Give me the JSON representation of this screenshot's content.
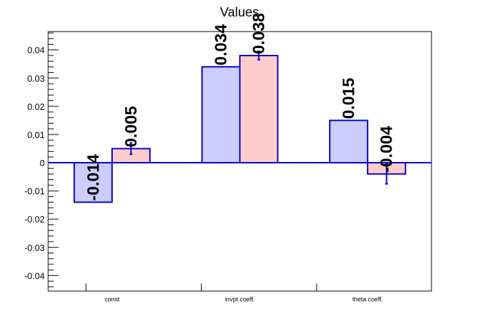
{
  "chart_data": {
    "type": "bar",
    "title": "Values",
    "categories": [
      "const",
      "invpt coeff.",
      "theta coeff."
    ],
    "series": [
      {
        "values": [
          -0.014,
          0.034,
          0.015
        ],
        "errors": [
          0,
          0,
          0
        ],
        "color": "#ccccff"
      },
      {
        "values": [
          0.005,
          0.038,
          -0.004
        ],
        "errors": [
          0.002,
          0.0015,
          0.0035
        ],
        "color": "#ffcccc"
      }
    ],
    "data_labels": [
      [
        "-0.014",
        "0.034",
        "0.015"
      ],
      [
        "0.005",
        "0.038",
        "-0.004"
      ]
    ],
    "yticks": [
      "-0.04",
      "-0.03",
      "-0.02",
      "-0.01",
      "0",
      "0.01",
      "0.02",
      "0.03",
      "0.04"
    ],
    "ylim": [
      -0.0455,
      0.0465
    ],
    "xlabel": "",
    "ylabel": "",
    "grid": false,
    "edge_color": "#0000cc"
  }
}
